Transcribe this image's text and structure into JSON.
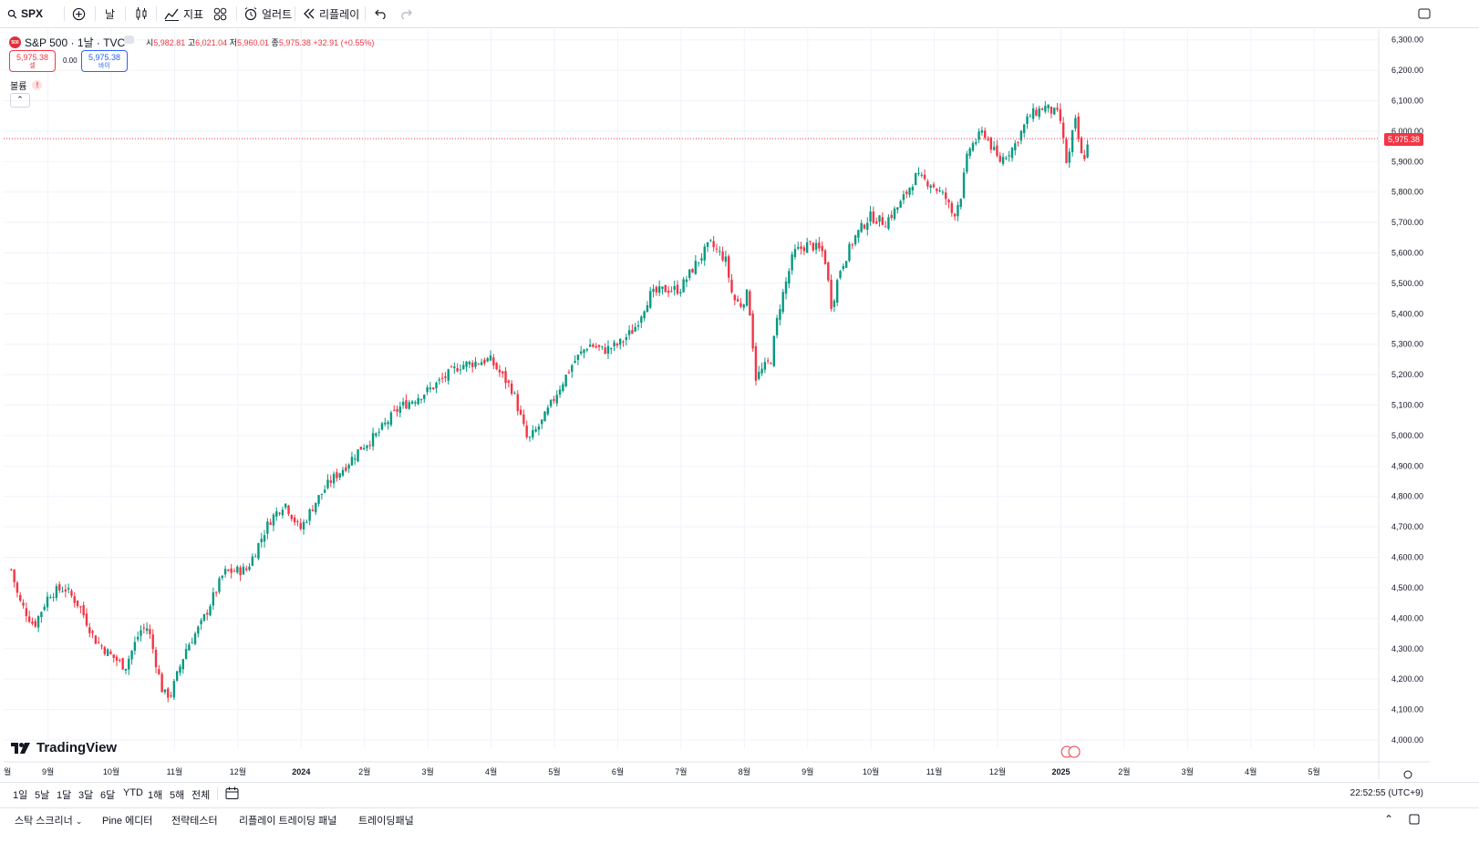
{
  "toolbar": {
    "symbol": "SPX",
    "interval": "날",
    "indicators": "지표",
    "alert": "얼러트",
    "replay": "리플레이"
  },
  "legend": {
    "title": "S&P 500 · 1날 · TVC",
    "o_label": "시",
    "o": "5,982.81",
    "h_label": "고",
    "h": "6,021.04",
    "l_label": "저",
    "l": "5,960.01",
    "c_label": "종",
    "c": "5,975.38",
    "change": "+32.91 (+0.55%)",
    "sell_price": "5,975.38",
    "sell_label": "셀",
    "spread": "0.00",
    "buy_price": "5,975.38",
    "buy_label": "바이",
    "volume_label": "볼륨",
    "current_price_badge": "5,975.38",
    "brand": "TradingView"
  },
  "range_buttons": [
    "1일",
    "5날",
    "1달",
    "3달",
    "6달",
    "YTD",
    "1해",
    "5해",
    "전체"
  ],
  "clock": "22:52:55 (UTC+9)",
  "bottom_tabs": [
    "스탁 스크리너",
    "Pine 에디터",
    "전략테스터",
    "리플레이 트레이딩 패널",
    "트레이딩패널"
  ],
  "colors": {
    "up": "#089981",
    "down": "#f23645",
    "grid": "#f0f3fa",
    "accent": "#2962ff"
  },
  "chart_data": {
    "type": "candlestick",
    "y_ticks": [
      "6,300.00",
      "6,200.00",
      "6,100.00",
      "6,000.00",
      "5,900.00",
      "5,800.00",
      "5,700.00",
      "5,600.00",
      "5,500.00",
      "5,400.00",
      "5,300.00",
      "5,200.00",
      "5,100.00",
      "5,000.00",
      "4,900.00",
      "4,800.00",
      "4,700.00",
      "4,600.00",
      "4,500.00",
      "4,400.00",
      "4,300.00",
      "4,200.00",
      "4,100.00",
      "4,000.00"
    ],
    "ylim": [
      3970,
      6335
    ],
    "x_ticks": [
      "월",
      "9월",
      "10월",
      "11월",
      "12월",
      "2024",
      "2월",
      "3월",
      "4월",
      "5월",
      "6월",
      "7월",
      "8월",
      "9월",
      "10월",
      "11월",
      "12월",
      "2025",
      "2월",
      "3월",
      "4월",
      "5월"
    ],
    "current_price": 5975.38,
    "close_path": [
      [
        2023.62,
        4560
      ],
      [
        2023.63,
        4460
      ],
      [
        2023.65,
        4375
      ],
      [
        2023.67,
        4480
      ],
      [
        2023.69,
        4500
      ],
      [
        2023.71,
        4440
      ],
      [
        2023.73,
        4330
      ],
      [
        2023.75,
        4280
      ],
      [
        2023.77,
        4240
      ],
      [
        2023.79,
        4360
      ],
      [
        2023.8,
        4370
      ],
      [
        2023.82,
        4150
      ],
      [
        2023.83,
        4150
      ],
      [
        2023.85,
        4300
      ],
      [
        2023.87,
        4380
      ],
      [
        2023.9,
        4550
      ],
      [
        2023.93,
        4560
      ],
      [
        2023.96,
        4720
      ],
      [
        2023.98,
        4780
      ],
      [
        2024.0,
        4690
      ],
      [
        2024.02,
        4780
      ],
      [
        2024.04,
        4850
      ],
      [
        2024.06,
        4900
      ],
      [
        2024.08,
        4960
      ],
      [
        2024.1,
        5000
      ],
      [
        2024.13,
        5090
      ],
      [
        2024.17,
        5150
      ],
      [
        2024.21,
        5230
      ],
      [
        2024.25,
        5250
      ],
      [
        2024.28,
        5150
      ],
      [
        2024.3,
        4980
      ],
      [
        2024.32,
        5050
      ],
      [
        2024.34,
        5150
      ],
      [
        2024.36,
        5240
      ],
      [
        2024.38,
        5300
      ],
      [
        2024.4,
        5280
      ],
      [
        2024.42,
        5300
      ],
      [
        2024.44,
        5350
      ],
      [
        2024.46,
        5460
      ],
      [
        2024.48,
        5480
      ],
      [
        2024.5,
        5480
      ],
      [
        2024.52,
        5560
      ],
      [
        2024.54,
        5630
      ],
      [
        2024.56,
        5580
      ],
      [
        2024.57,
        5450
      ],
      [
        2024.58,
        5430
      ],
      [
        2024.59,
        5470
      ],
      [
        2024.6,
        5190
      ],
      [
        2024.62,
        5250
      ],
      [
        2024.63,
        5410
      ],
      [
        2024.65,
        5600
      ],
      [
        2024.67,
        5630
      ],
      [
        2024.69,
        5600
      ],
      [
        2024.7,
        5420
      ],
      [
        2024.71,
        5540
      ],
      [
        2024.73,
        5650
      ],
      [
        2024.75,
        5720
      ],
      [
        2024.77,
        5700
      ],
      [
        2024.79,
        5760
      ],
      [
        2024.81,
        5850
      ],
      [
        2024.83,
        5830
      ],
      [
        2024.85,
        5780
      ],
      [
        2024.86,
        5720
      ],
      [
        2024.87,
        5790
      ],
      [
        2024.88,
        5940
      ],
      [
        2024.9,
        6000
      ],
      [
        2024.92,
        5900
      ],
      [
        2024.94,
        5950
      ],
      [
        2024.96,
        6050
      ],
      [
        2024.98,
        6080
      ],
      [
        2025.0,
        6050
      ],
      [
        2025.01,
        5880
      ],
      [
        2025.02,
        6040
      ],
      [
        2025.03,
        5900
      ],
      [
        2025.04,
        5975
      ]
    ]
  }
}
